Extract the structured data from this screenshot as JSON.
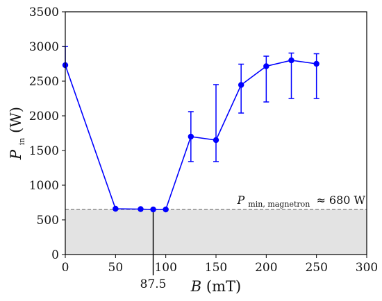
{
  "chart_data": {
    "type": "line",
    "xlabel_symbol": "B",
    "xlabel_unit": "(mT)",
    "ylabel_symbol": "P",
    "ylabel_subscript": "in",
    "ylabel_unit": "(W)",
    "xlim": [
      0,
      300
    ],
    "ylim": [
      0,
      3500
    ],
    "xticks": [
      0,
      50,
      100,
      150,
      200,
      250,
      300
    ],
    "yticks": [
      0,
      500,
      1000,
      1500,
      2000,
      2500,
      3000,
      3500
    ],
    "grid": false,
    "colors": {
      "series": "#0000ff",
      "shade": "#e3e3e3",
      "threshold_line": "#777777",
      "marker_line": "#000000"
    },
    "series": [
      {
        "x": [
          0,
          50,
          75,
          87.5,
          100,
          125,
          150,
          175,
          200,
          225,
          250
        ],
        "y": [
          2730,
          660,
          655,
          650,
          650,
          1700,
          1650,
          2445,
          2715,
          2800,
          2750
        ],
        "err_low": [
          2730,
          660,
          655,
          650,
          650,
          1340,
          1340,
          2040,
          2200,
          2250,
          2250
        ],
        "err_high": [
          3000,
          660,
          655,
          650,
          650,
          2060,
          2450,
          2745,
          2860,
          2905,
          2895
        ]
      }
    ],
    "threshold": {
      "value": 650,
      "label_symbol": "P",
      "label_subscript": "min, magnetron",
      "label_text": "≈ 680 W"
    },
    "vertical_marker": {
      "x": 87.5,
      "label": "87.5"
    }
  }
}
